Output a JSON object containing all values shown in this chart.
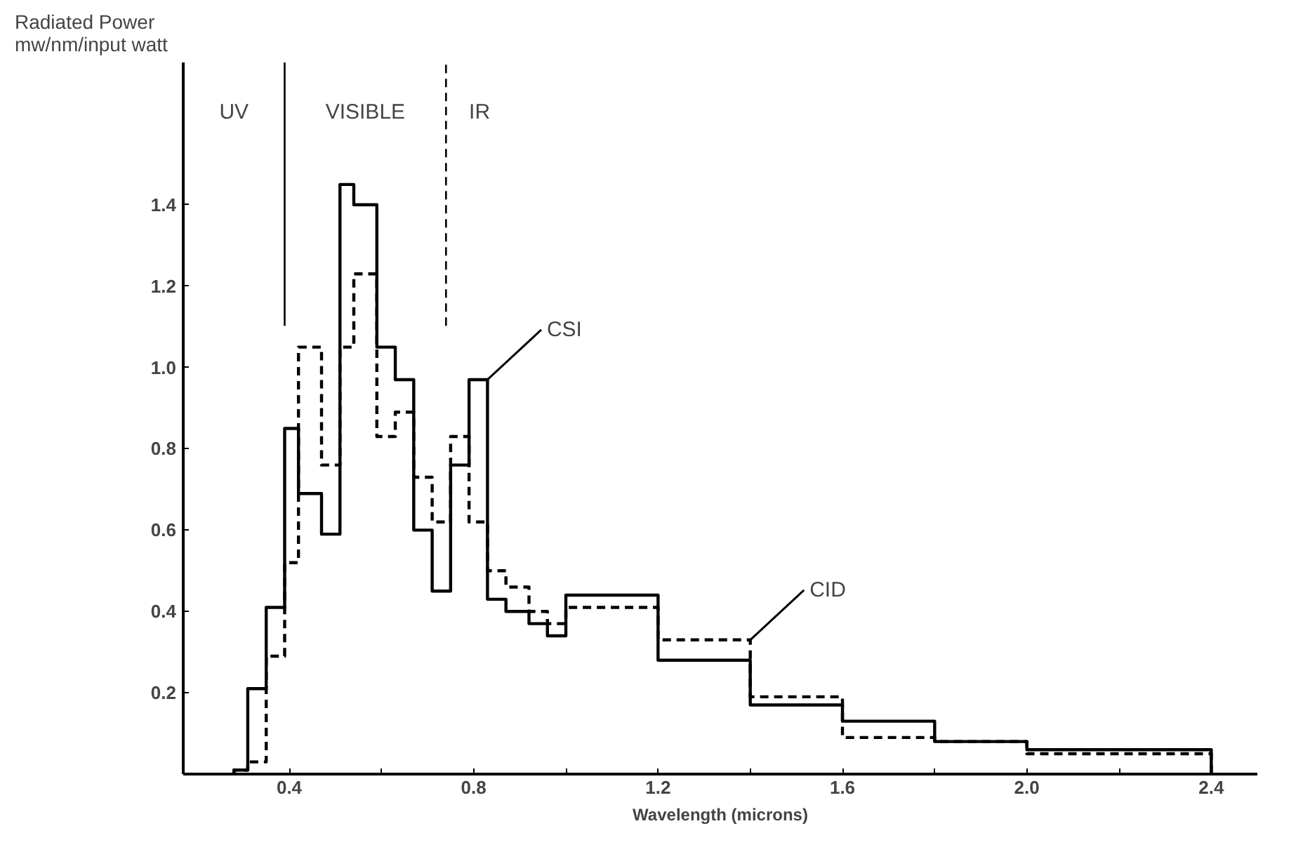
{
  "chart_data": {
    "type": "step",
    "xlabel": "Wavelength (microns)",
    "ylabel": "Radiated Power\nmw/nm/input watt",
    "x": [
      0.28,
      0.31,
      0.35,
      0.39,
      0.42,
      0.47,
      0.51,
      0.54,
      0.59,
      0.63,
      0.67,
      0.71,
      0.75,
      0.79,
      0.83,
      0.87,
      0.92,
      0.96,
      1.0,
      1.2,
      1.4,
      1.6,
      1.8,
      2.0,
      2.4
    ],
    "series": [
      {
        "color": "#000000",
        "line_style": "solid",
        "values": [
          0.01,
          0.21,
          0.41,
          0.85,
          0.69,
          0.59,
          1.45,
          1.4,
          1.05,
          0.97,
          0.6,
          0.45,
          0.76,
          0.97,
          0.43,
          0.4,
          0.37,
          0.34,
          0.44,
          0.28,
          0.17,
          0.13,
          0.08,
          0.06,
          0
        ]
      },
      {
        "color": "#000000",
        "line_style": "dashed",
        "values": [
          0.01,
          0.03,
          0.29,
          0.52,
          1.05,
          0.76,
          1.05,
          1.23,
          0.83,
          0.89,
          0.73,
          0.62,
          0.83,
          0.62,
          0.5,
          0.46,
          0.4,
          0.37,
          0.41,
          0.33,
          0.19,
          0.09,
          0.08,
          0.05,
          0
        ]
      }
    ],
    "xlim": [
      0.17,
      2.5
    ],
    "ylim": [
      0,
      1.75
    ],
    "xticks": [
      0.4,
      {
        "value": 0.6,
        "label": null
      },
      0.8,
      {
        "value": 1.0,
        "label": null
      },
      1.2,
      {
        "value": 1.4,
        "label": null
      },
      1.6,
      {
        "value": 1.8,
        "label": null
      },
      {
        "value": 2.0,
        "label": "2.0"
      },
      {
        "value": 2.2,
        "label": null
      },
      2.4
    ],
    "yticks": [
      0.2,
      0.4,
      0.6,
      0.8,
      {
        "value": 1.0,
        "label": "1.0"
      },
      1.2,
      1.4
    ],
    "ref_lines": [
      {
        "axis": "x",
        "value": 0.39,
        "label": null,
        "line_style": "solid"
      },
      {
        "axis": "x",
        "value": 0.74,
        "label": null,
        "line_style": "dashed"
      }
    ],
    "annotations": [
      "UV",
      "VISIBLE",
      "IR",
      {
        "text": "CSI",
        "x": 0.83,
        "y": 0.97
      },
      {
        "text": "CID",
        "x": 1.4,
        "y": 0.33
      }
    ],
    "grid": false,
    "marker": "none"
  }
}
